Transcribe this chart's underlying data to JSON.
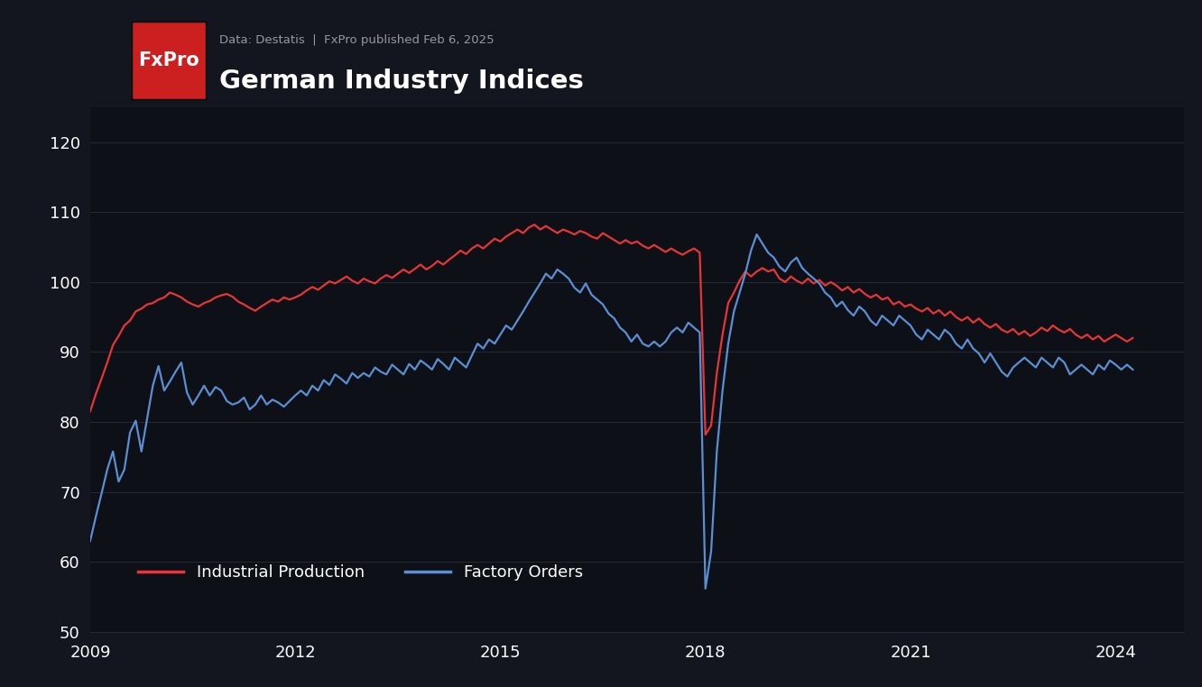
{
  "title": "German Industry Indices",
  "subtitle": "Data: Destatis  |  FxPro published Feb 6, 2025",
  "background_color": "#13151f",
  "plot_bg": "#0d1017",
  "grid_color": "#252836",
  "text_color": "#ffffff",
  "subtitle_color": "#999999",
  "red_color": "#e83535",
  "blue_color": "#5b8fd4",
  "legend": [
    "Industrial Production",
    "Factory Orders"
  ],
  "ylim": [
    50,
    125
  ],
  "yticks": [
    50,
    60,
    70,
    80,
    90,
    100,
    110,
    120
  ],
  "logo_text": "FxPro",
  "logo_bg": "#cc2020",
  "industrial_production": [
    81.5,
    84.0,
    86.2,
    88.5,
    91.0,
    92.3,
    93.8,
    94.5,
    95.8,
    96.2,
    96.8,
    97.0,
    97.5,
    97.8,
    98.5,
    98.2,
    97.8,
    97.2,
    96.8,
    96.5,
    97.0,
    97.3,
    97.8,
    98.1,
    98.3,
    97.9,
    97.2,
    96.8,
    96.3,
    95.9,
    96.5,
    97.0,
    97.5,
    97.2,
    97.8,
    97.5,
    97.8,
    98.2,
    98.8,
    99.3,
    98.9,
    99.5,
    100.1,
    99.8,
    100.3,
    100.8,
    100.2,
    99.8,
    100.5,
    100.1,
    99.8,
    100.5,
    101.0,
    100.6,
    101.2,
    101.8,
    101.3,
    101.9,
    102.5,
    101.8,
    102.3,
    103.0,
    102.5,
    103.2,
    103.8,
    104.5,
    104.0,
    104.8,
    105.3,
    104.8,
    105.5,
    106.2,
    105.8,
    106.5,
    107.0,
    107.5,
    107.0,
    107.8,
    108.2,
    107.5,
    108.0,
    107.5,
    107.0,
    107.5,
    107.2,
    106.8,
    107.3,
    107.0,
    106.5,
    106.2,
    107.0,
    106.5,
    106.0,
    105.5,
    106.0,
    105.5,
    105.8,
    105.2,
    104.8,
    105.3,
    104.8,
    104.3,
    104.8,
    104.3,
    103.9,
    104.4,
    104.8,
    104.2,
    78.2,
    79.5,
    87.0,
    92.5,
    97.0,
    98.5,
    100.2,
    101.5,
    100.8,
    101.5,
    102.0,
    101.5,
    101.8,
    100.5,
    100.0,
    100.8,
    100.2,
    99.8,
    100.5,
    99.8,
    100.3,
    99.5,
    100.0,
    99.5,
    98.8,
    99.3,
    98.5,
    99.0,
    98.3,
    97.8,
    98.2,
    97.5,
    97.8,
    96.8,
    97.2,
    96.5,
    96.8,
    96.2,
    95.8,
    96.3,
    95.5,
    96.0,
    95.2,
    95.8,
    95.0,
    94.5,
    95.0,
    94.2,
    94.8,
    94.0,
    93.5,
    94.0,
    93.2,
    92.8,
    93.3,
    92.5,
    93.0,
    92.3,
    92.8,
    93.5,
    93.0,
    93.8,
    93.2,
    92.8,
    93.3,
    92.5,
    92.0,
    92.5,
    91.8,
    92.3,
    91.5,
    92.0,
    92.5,
    92.0,
    91.5,
    92.0
  ],
  "factory_orders": [
    63.0,
    66.5,
    69.8,
    73.2,
    75.8,
    71.5,
    73.2,
    78.5,
    80.2,
    75.8,
    80.5,
    85.2,
    88.0,
    84.5,
    85.8,
    87.2,
    88.5,
    84.2,
    82.5,
    83.8,
    85.2,
    83.8,
    85.0,
    84.5,
    83.0,
    82.5,
    82.8,
    83.5,
    81.8,
    82.5,
    83.8,
    82.5,
    83.2,
    82.8,
    82.2,
    83.0,
    83.8,
    84.5,
    83.8,
    85.2,
    84.5,
    86.0,
    85.3,
    86.8,
    86.2,
    85.5,
    87.0,
    86.3,
    87.0,
    86.5,
    87.8,
    87.2,
    86.8,
    88.2,
    87.5,
    86.8,
    88.3,
    87.5,
    88.8,
    88.2,
    87.5,
    89.0,
    88.3,
    87.5,
    89.2,
    88.5,
    87.8,
    89.5,
    91.2,
    90.5,
    91.8,
    91.2,
    92.5,
    93.8,
    93.2,
    94.5,
    95.8,
    97.2,
    98.5,
    99.8,
    101.2,
    100.5,
    101.8,
    101.2,
    100.5,
    99.2,
    98.5,
    99.8,
    98.2,
    97.5,
    96.8,
    95.5,
    94.8,
    93.5,
    92.8,
    91.5,
    92.5,
    91.2,
    90.8,
    91.5,
    90.8,
    91.5,
    92.8,
    93.5,
    92.8,
    94.2,
    93.5,
    92.8,
    56.2,
    61.5,
    75.8,
    84.5,
    91.2,
    95.8,
    98.5,
    101.2,
    104.5,
    106.8,
    105.5,
    104.2,
    103.5,
    102.2,
    101.5,
    102.8,
    103.5,
    102.0,
    101.2,
    100.5,
    99.8,
    98.5,
    97.8,
    96.5,
    97.2,
    96.0,
    95.2,
    96.5,
    95.8,
    94.5,
    93.8,
    95.2,
    94.5,
    93.8,
    95.2,
    94.5,
    93.8,
    92.5,
    91.8,
    93.2,
    92.5,
    91.8,
    93.2,
    92.5,
    91.2,
    90.5,
    91.8,
    90.5,
    89.8,
    88.5,
    89.8,
    88.5,
    87.2,
    86.5,
    87.8,
    88.5,
    89.2,
    88.5,
    87.8,
    89.2,
    88.5,
    87.8,
    89.2,
    88.5,
    86.8,
    87.5,
    88.2,
    87.5,
    86.8,
    88.2,
    87.5,
    88.8,
    88.2,
    87.5,
    88.2,
    87.5
  ]
}
